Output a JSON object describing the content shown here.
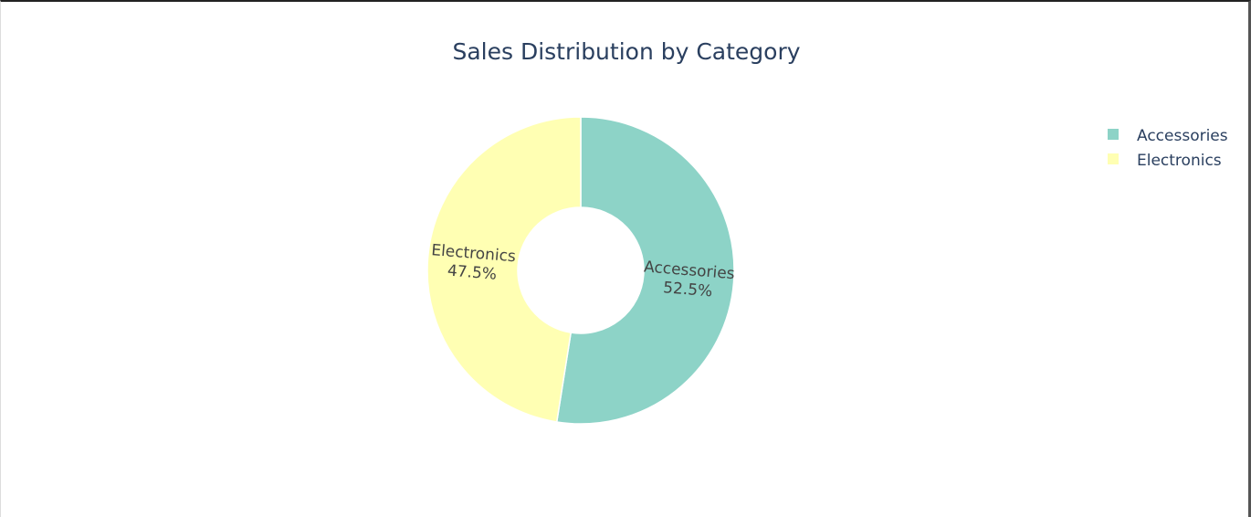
{
  "chart_data": {
    "type": "pie",
    "hole": true,
    "title": "Sales Distribution by Category",
    "slices": [
      {
        "label": "Accessories",
        "percent": 52.5,
        "percent_text": "52.5%",
        "color": "#8dd3c7"
      },
      {
        "label": "Electronics",
        "percent": 47.5,
        "percent_text": "47.5%",
        "color": "#ffffb3"
      }
    ],
    "legend": {
      "placement": "top-right",
      "items": [
        "Accessories",
        "Electronics"
      ]
    }
  }
}
